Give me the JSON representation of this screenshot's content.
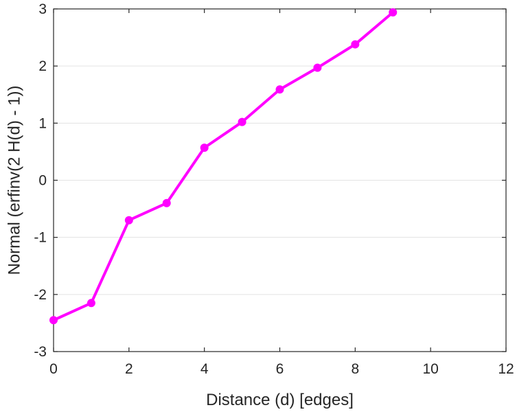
{
  "chart_data": {
    "type": "line",
    "title": "",
    "xlabel": "Distance (d) [edges]",
    "ylabel": "Normal (erfinv(2 H(d) - 1))",
    "xlim": [
      0,
      12
    ],
    "ylim": [
      -3,
      3
    ],
    "xticks": [
      0,
      2,
      4,
      6,
      8,
      10,
      12
    ],
    "yticks": [
      -3,
      -2,
      -1,
      0,
      1,
      2,
      3
    ],
    "xtick_labels": [
      "0",
      "2",
      "4",
      "6",
      "8",
      "10",
      "12"
    ],
    "ytick_labels": [
      "-3",
      "-2",
      "-1",
      "0",
      "1",
      "2",
      "3"
    ],
    "grid": "horizontal",
    "legend": "none",
    "series": [
      {
        "color": "#ff00ff",
        "marker": "circle",
        "x": [
          0,
          1,
          2,
          3,
          4,
          5,
          6,
          7,
          8,
          9
        ],
        "y": [
          -2.45,
          -2.15,
          -0.7,
          -0.4,
          0.57,
          1.02,
          1.59,
          1.97,
          2.38,
          2.94
        ]
      }
    ]
  }
}
